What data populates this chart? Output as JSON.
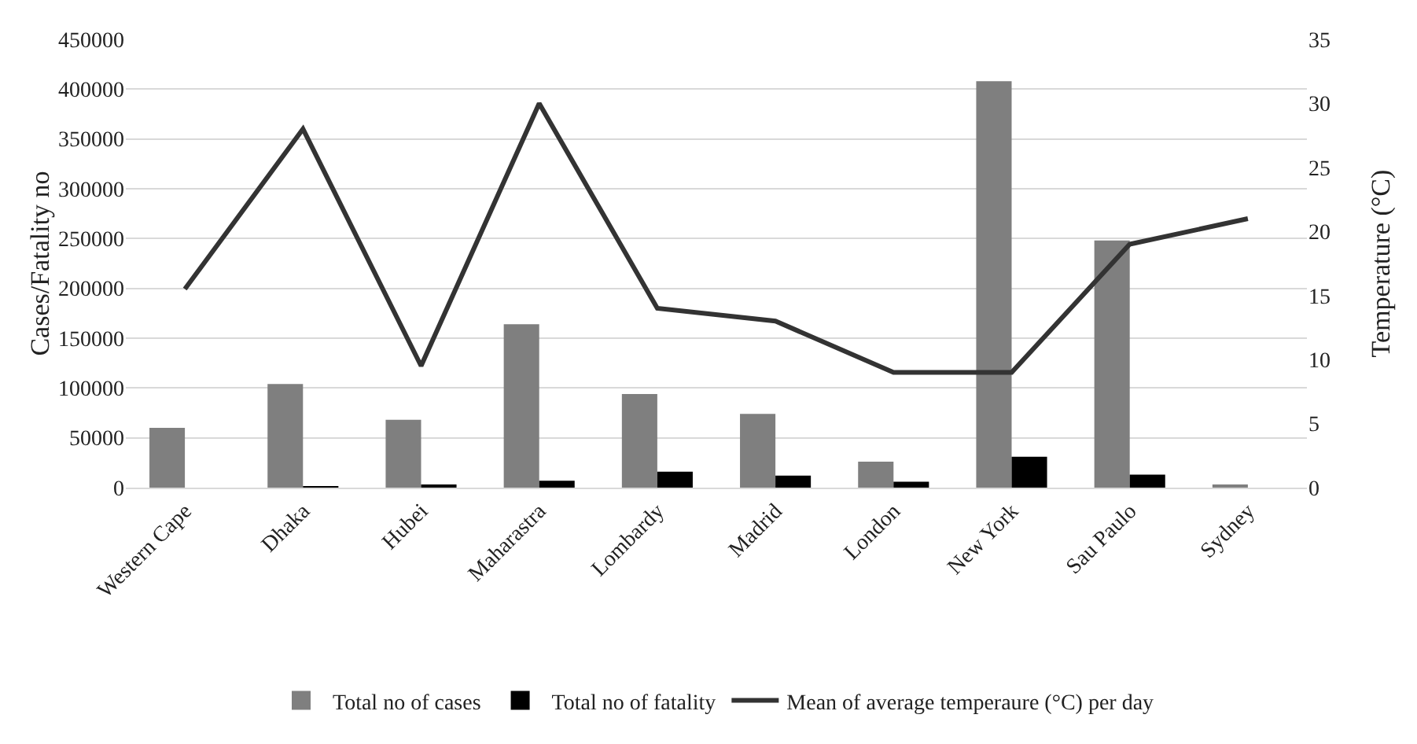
{
  "chart_data": {
    "type": "bar",
    "ylabel": "Cases/Fatality no",
    "y2label": "Temperature (°C)",
    "categories": [
      "Western Cape",
      "Dhaka",
      "Hubei",
      "Maharastra",
      "Lombardy",
      "Madrid",
      "London",
      "New York",
      "Sau Paulo",
      "Sydney"
    ],
    "series": [
      {
        "name": "Total no of cases",
        "color": "#7f7f7f",
        "values": [
          60000,
          104000,
          68000,
          164000,
          94000,
          74000,
          26000,
          408000,
          248000,
          3000
        ]
      },
      {
        "name": "Total no of fatality",
        "color": "#000000",
        "values": [
          0,
          1000,
          3000,
          7000,
          16000,
          12000,
          6000,
          31000,
          13000,
          0
        ]
      },
      {
        "name": "Mean of average temperaure (°C) per day",
        "type": "line",
        "axis": "y2",
        "color": "#333333",
        "values": [
          15.5,
          28,
          9.5,
          30,
          14,
          13,
          9,
          9,
          19,
          21
        ]
      }
    ],
    "ylim": [
      0,
      450000
    ],
    "yticks": [
      0,
      50000,
      100000,
      150000,
      200000,
      250000,
      300000,
      350000,
      400000,
      450000
    ],
    "y2lim": [
      0,
      35
    ],
    "y2ticks": [
      0,
      5,
      10,
      15,
      20,
      25,
      30,
      35
    ],
    "grid": "y",
    "legend": "bottom",
    "marker": "none"
  }
}
